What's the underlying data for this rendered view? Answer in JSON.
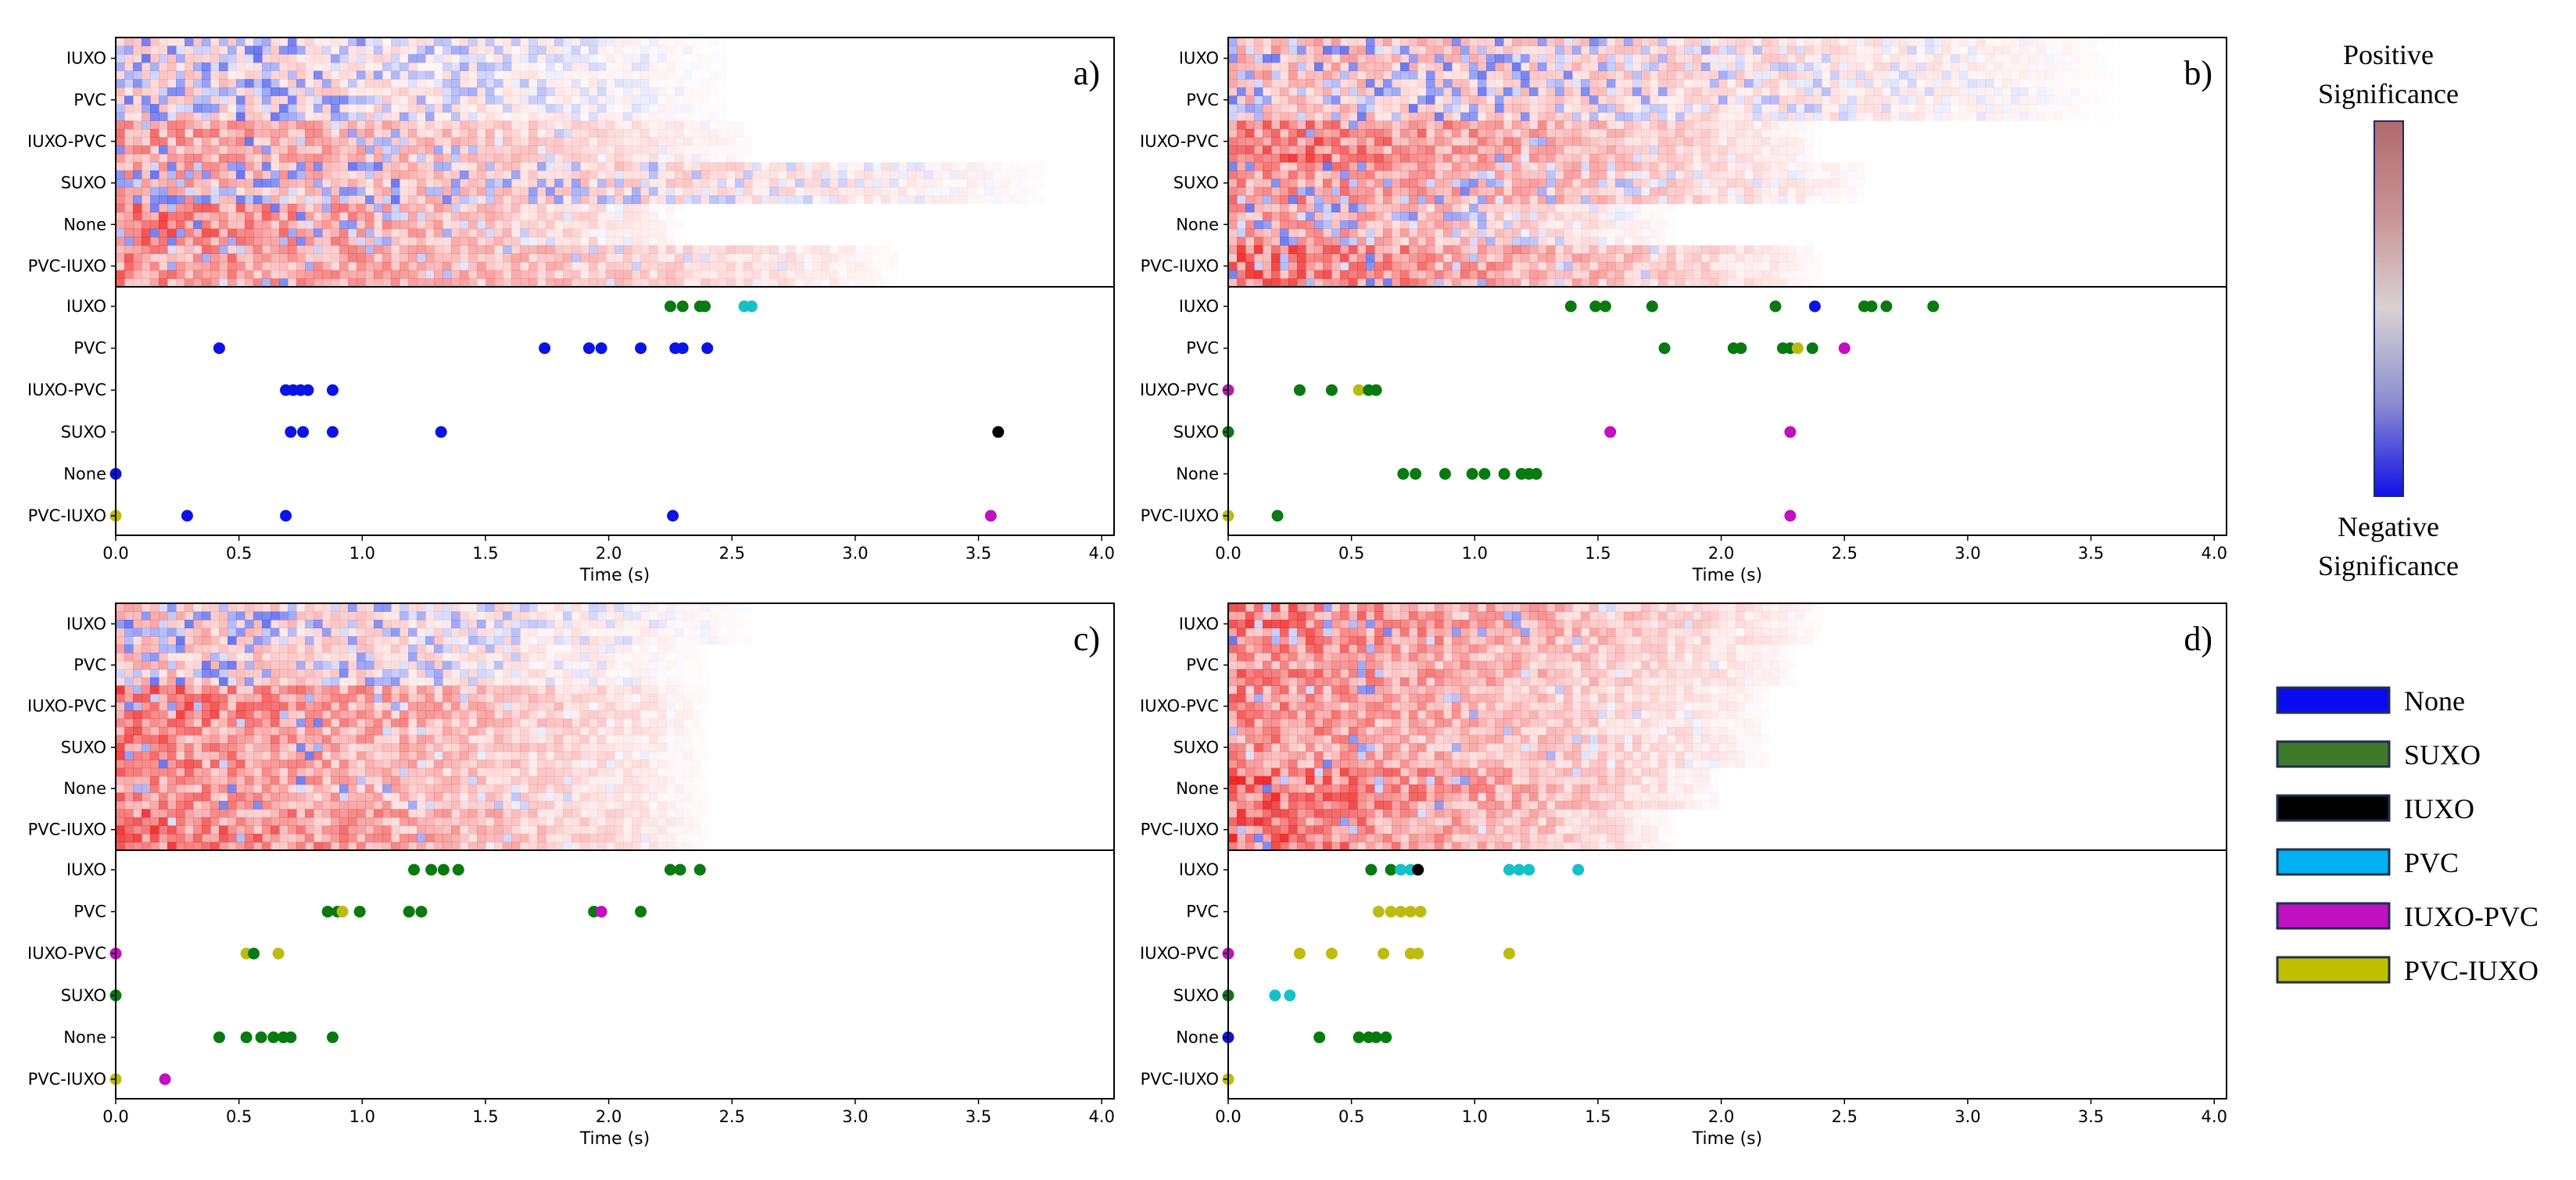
{
  "chart_data": {
    "type": "heatmap+scatter",
    "panels": [
      {
        "label": "a)",
        "heatmap_rows": [
          "IUXO",
          "PVC",
          "IUXO-PVC",
          "SUXO",
          "None",
          "PVC-IUXO"
        ],
        "x_ticks": [
          "0.0",
          "0.5",
          "1.0",
          "1.5",
          "2.0",
          "2.5",
          "3.0",
          "3.5",
          "4.0"
        ],
        "xlim": [
          0,
          4.05
        ],
        "xlabel": "Time (s)",
        "scatter_rows": [
          "IUXO",
          "PVC",
          "IUXO-PVC",
          "SUXO",
          "None",
          "PVC-IUXO"
        ],
        "points": {
          "IUXO": [
            [
              2.25,
              "SUXO"
            ],
            [
              2.3,
              "SUXO"
            ],
            [
              2.37,
              "SUXO"
            ],
            [
              2.39,
              "SUXO"
            ],
            [
              2.55,
              "PVC"
            ],
            [
              2.58,
              "PVC"
            ]
          ],
          "PVC": [
            [
              0.42,
              "None"
            ],
            [
              1.74,
              "None"
            ],
            [
              1.92,
              "None"
            ],
            [
              1.97,
              "None"
            ],
            [
              2.13,
              "None"
            ],
            [
              2.27,
              "None"
            ],
            [
              2.3,
              "None"
            ],
            [
              2.4,
              "None"
            ]
          ],
          "IUXO-PVC": [
            [
              0.69,
              "None"
            ],
            [
              0.72,
              "None"
            ],
            [
              0.75,
              "None"
            ],
            [
              0.78,
              "None"
            ],
            [
              0.88,
              "None"
            ]
          ],
          "SUXO": [
            [
              0.71,
              "None"
            ],
            [
              0.76,
              "None"
            ],
            [
              0.88,
              "None"
            ],
            [
              1.32,
              "None"
            ],
            [
              3.58,
              "IUXO"
            ]
          ],
          "None": [
            [
              0.0,
              "None"
            ]
          ],
          "PVC-IUXO": [
            [
              0.0,
              "PVC-IUXO"
            ],
            [
              0.29,
              "None"
            ],
            [
              0.69,
              "None"
            ],
            [
              2.26,
              "None"
            ],
            [
              3.55,
              "IUXO-PVC"
            ]
          ]
        }
      },
      {
        "label": "b)",
        "heatmap_rows": [
          "IUXO",
          "PVC",
          "IUXO-PVC",
          "SUXO",
          "None",
          "PVC-IUXO"
        ],
        "x_ticks": [
          "0.0",
          "0.5",
          "1.0",
          "1.5",
          "2.0",
          "2.5",
          "3.0",
          "3.5",
          "4.0"
        ],
        "xlim": [
          0,
          4.05
        ],
        "xlabel": "Time (s)",
        "scatter_rows": [
          "IUXO",
          "PVC",
          "IUXO-PVC",
          "SUXO",
          "None",
          "PVC-IUXO"
        ],
        "points": {
          "IUXO": [
            [
              1.39,
              "SUXO"
            ],
            [
              1.49,
              "SUXO"
            ],
            [
              1.53,
              "SUXO"
            ],
            [
              1.72,
              "SUXO"
            ],
            [
              2.22,
              "SUXO"
            ],
            [
              2.38,
              "None"
            ],
            [
              2.58,
              "SUXO"
            ],
            [
              2.61,
              "SUXO"
            ],
            [
              2.67,
              "SUXO"
            ],
            [
              2.86,
              "SUXO"
            ]
          ],
          "PVC": [
            [
              1.77,
              "SUXO"
            ],
            [
              2.05,
              "SUXO"
            ],
            [
              2.08,
              "SUXO"
            ],
            [
              2.25,
              "SUXO"
            ],
            [
              2.28,
              "SUXO"
            ],
            [
              2.31,
              "PVC-IUXO"
            ],
            [
              2.37,
              "SUXO"
            ],
            [
              2.5,
              "IUXO-PVC"
            ]
          ],
          "IUXO-PVC": [
            [
              0.0,
              "IUXO-PVC"
            ],
            [
              0.29,
              "SUXO"
            ],
            [
              0.42,
              "SUXO"
            ],
            [
              0.53,
              "PVC-IUXO"
            ],
            [
              0.57,
              "SUXO"
            ],
            [
              0.6,
              "SUXO"
            ]
          ],
          "SUXO": [
            [
              0.0,
              "SUXO"
            ],
            [
              1.55,
              "IUXO-PVC"
            ],
            [
              2.28,
              "IUXO-PVC"
            ]
          ],
          "None": [
            [
              0.71,
              "SUXO"
            ],
            [
              0.76,
              "SUXO"
            ],
            [
              0.88,
              "SUXO"
            ],
            [
              0.99,
              "SUXO"
            ],
            [
              1.04,
              "SUXO"
            ],
            [
              1.12,
              "SUXO"
            ],
            [
              1.19,
              "SUXO"
            ],
            [
              1.22,
              "SUXO"
            ],
            [
              1.25,
              "SUXO"
            ]
          ],
          "PVC-IUXO": [
            [
              0.0,
              "PVC-IUXO"
            ],
            [
              0.2,
              "SUXO"
            ],
            [
              2.28,
              "IUXO-PVC"
            ]
          ]
        }
      },
      {
        "label": "c)",
        "heatmap_rows": [
          "IUXO",
          "PVC",
          "IUXO-PVC",
          "SUXO",
          "None",
          "PVC-IUXO"
        ],
        "x_ticks": [
          "0.0",
          "0.5",
          "1.0",
          "1.5",
          "2.0",
          "2.5",
          "3.0",
          "3.5",
          "4.0"
        ],
        "xlim": [
          0,
          4.05
        ],
        "xlabel": "Time (s)",
        "scatter_rows": [
          "IUXO",
          "PVC",
          "IUXO-PVC",
          "SUXO",
          "None",
          "PVC-IUXO"
        ],
        "points": {
          "IUXO": [
            [
              1.21,
              "SUXO"
            ],
            [
              1.28,
              "SUXO"
            ],
            [
              1.33,
              "SUXO"
            ],
            [
              1.39,
              "SUXO"
            ],
            [
              2.25,
              "SUXO"
            ],
            [
              2.29,
              "SUXO"
            ],
            [
              2.37,
              "SUXO"
            ]
          ],
          "PVC": [
            [
              0.86,
              "SUXO"
            ],
            [
              0.9,
              "SUXO"
            ],
            [
              0.92,
              "PVC-IUXO"
            ],
            [
              0.99,
              "SUXO"
            ],
            [
              1.19,
              "SUXO"
            ],
            [
              1.24,
              "SUXO"
            ],
            [
              1.94,
              "SUXO"
            ],
            [
              1.97,
              "IUXO-PVC"
            ],
            [
              2.13,
              "SUXO"
            ]
          ],
          "IUXO-PVC": [
            [
              0.0,
              "IUXO-PVC"
            ],
            [
              0.53,
              "PVC-IUXO"
            ],
            [
              0.56,
              "SUXO"
            ],
            [
              0.66,
              "PVC-IUXO"
            ]
          ],
          "SUXO": [
            [
              0.0,
              "SUXO"
            ]
          ],
          "None": [
            [
              0.42,
              "SUXO"
            ],
            [
              0.53,
              "SUXO"
            ],
            [
              0.59,
              "SUXO"
            ],
            [
              0.64,
              "SUXO"
            ],
            [
              0.68,
              "SUXO"
            ],
            [
              0.71,
              "SUXO"
            ],
            [
              0.88,
              "SUXO"
            ]
          ],
          "PVC-IUXO": [
            [
              0.0,
              "PVC-IUXO"
            ],
            [
              0.2,
              "IUXO-PVC"
            ]
          ]
        }
      },
      {
        "label": "d)",
        "heatmap_rows": [
          "IUXO",
          "PVC",
          "IUXO-PVC",
          "SUXO",
          "None",
          "PVC-IUXO"
        ],
        "x_ticks": [
          "0.0",
          "0.5",
          "1.0",
          "1.5",
          "2.0",
          "2.5",
          "3.0",
          "3.5",
          "4.0"
        ],
        "xlim": [
          0,
          4.05
        ],
        "xlabel": "Time (s)",
        "scatter_rows": [
          "IUXO",
          "PVC",
          "IUXO-PVC",
          "SUXO",
          "None",
          "PVC-IUXO"
        ],
        "points": {
          "IUXO": [
            [
              0.58,
              "SUXO"
            ],
            [
              0.66,
              "SUXO"
            ],
            [
              0.7,
              "PVC"
            ],
            [
              0.74,
              "PVC"
            ],
            [
              0.77,
              "IUXO"
            ],
            [
              1.14,
              "PVC"
            ],
            [
              1.18,
              "PVC"
            ],
            [
              1.22,
              "PVC"
            ],
            [
              1.42,
              "PVC"
            ]
          ],
          "PVC": [
            [
              0.61,
              "PVC-IUXO"
            ],
            [
              0.66,
              "PVC-IUXO"
            ],
            [
              0.7,
              "PVC-IUXO"
            ],
            [
              0.74,
              "PVC-IUXO"
            ],
            [
              0.78,
              "PVC-IUXO"
            ]
          ],
          "IUXO-PVC": [
            [
              0.0,
              "IUXO-PVC"
            ],
            [
              0.29,
              "PVC-IUXO"
            ],
            [
              0.42,
              "PVC-IUXO"
            ],
            [
              0.63,
              "PVC-IUXO"
            ],
            [
              0.74,
              "PVC-IUXO"
            ],
            [
              0.77,
              "PVC-IUXO"
            ],
            [
              1.14,
              "PVC-IUXO"
            ]
          ],
          "SUXO": [
            [
              0.0,
              "SUXO"
            ],
            [
              0.19,
              "PVC"
            ],
            [
              0.25,
              "PVC"
            ]
          ],
          "None": [
            [
              0.0,
              "None"
            ],
            [
              0.37,
              "SUXO"
            ],
            [
              0.53,
              "SUXO"
            ],
            [
              0.57,
              "SUXO"
            ],
            [
              0.6,
              "SUXO"
            ],
            [
              0.64,
              "SUXO"
            ]
          ],
          "PVC-IUXO": [
            [
              0.0,
              "PVC-IUXO"
            ]
          ]
        }
      }
    ],
    "colorbar": {
      "top_label_line1": "Positive",
      "top_label_line2": "Significance",
      "bottom_label_line1": "Negative",
      "bottom_label_line2": "Significance",
      "colors": [
        "#b06a6e",
        "#c99294",
        "#d8d2d2",
        "#8c8ed0",
        "#0f10e8"
      ]
    },
    "legend": [
      {
        "name": "None",
        "color": "#0b0bf2"
      },
      {
        "name": "SUXO",
        "color": "#3f7a2a"
      },
      {
        "name": "IUXO",
        "color": "#000000"
      },
      {
        "name": "PVC",
        "color": "#00b0f0"
      },
      {
        "name": "IUXO-PVC",
        "color": "#c010c0"
      },
      {
        "name": "PVC-IUXO",
        "color": "#c0c000"
      }
    ],
    "point_colors": {
      "None": "#0b14e6",
      "SUXO": "#087a10",
      "IUXO": "#000000",
      "PVC": "#16c0c8",
      "IUXO-PVC": "#c010c0",
      "PVC-IUXO": "#bcbc10"
    }
  }
}
